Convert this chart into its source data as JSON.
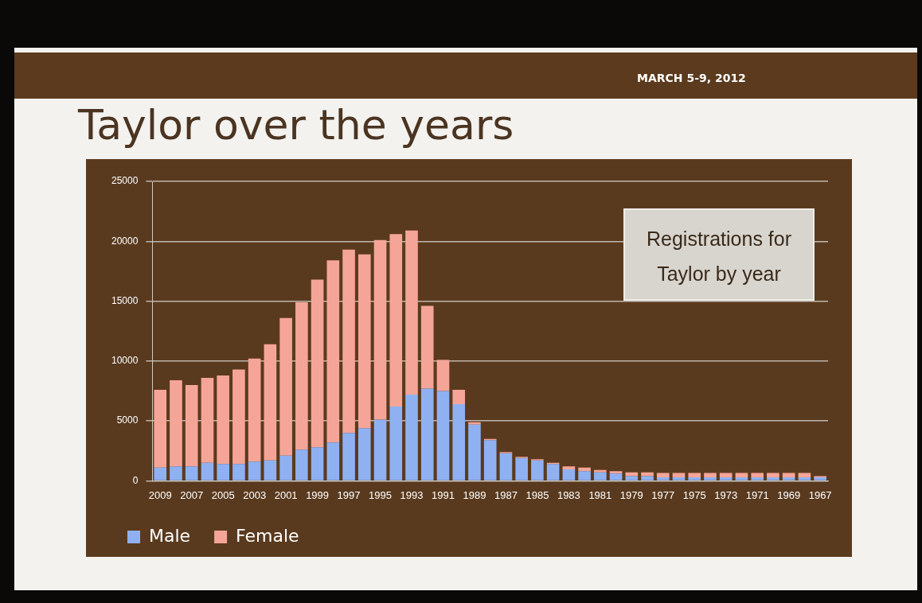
{
  "chart_data": {
    "type": "bar",
    "title": "Taylor over the years",
    "annotations": [
      "MARCH 5-9, 2012",
      "Registrations for Taylor by year"
    ],
    "categories": [
      "2009",
      null,
      "2007",
      null,
      "2005",
      null,
      "2003",
      null,
      "2001",
      null,
      "1999",
      null,
      "1997",
      null,
      "1995",
      null,
      "1993",
      null,
      "1991",
      null,
      "1989",
      null,
      "1987",
      null,
      "1985",
      null,
      "1983",
      null,
      "1981",
      null,
      "1979",
      null,
      "1977",
      null,
      "1975",
      null,
      "1973",
      null,
      "1971",
      null,
      "1969",
      null,
      "1967"
    ],
    "series": [
      {
        "name": "Male",
        "color": "#8fb1f2",
        "values": [
          1100,
          1200,
          1200,
          1500,
          1400,
          1400,
          1600,
          1700,
          2100,
          2600,
          2800,
          3200,
          4000,
          4400,
          5100,
          6200,
          7200,
          7700,
          7500,
          6400,
          4700,
          3400,
          2300,
          1900,
          1700,
          1400,
          950,
          800,
          700,
          600,
          400,
          400,
          300,
          300,
          300,
          300,
          300,
          300,
          300,
          300,
          300,
          300,
          300
        ]
      },
      {
        "name": "Female",
        "color": "#f5a597",
        "values": [
          6500,
          7200,
          6800,
          7100,
          7400,
          7900,
          8600,
          9700,
          11500,
          12300,
          14000,
          15200,
          15300,
          14500,
          15000,
          14400,
          13700,
          6900,
          2600,
          1200,
          200,
          100,
          100,
          100,
          100,
          100,
          250,
          300,
          200,
          200,
          300,
          300,
          350,
          350,
          350,
          350,
          350,
          350,
          350,
          350,
          350,
          350,
          100
        ]
      }
    ],
    "stacked": true,
    "ylim": [
      0,
      25000
    ],
    "yticks": [
      0,
      5000,
      10000,
      15000,
      20000,
      25000
    ],
    "grid": "y",
    "legend": "bottom left"
  }
}
